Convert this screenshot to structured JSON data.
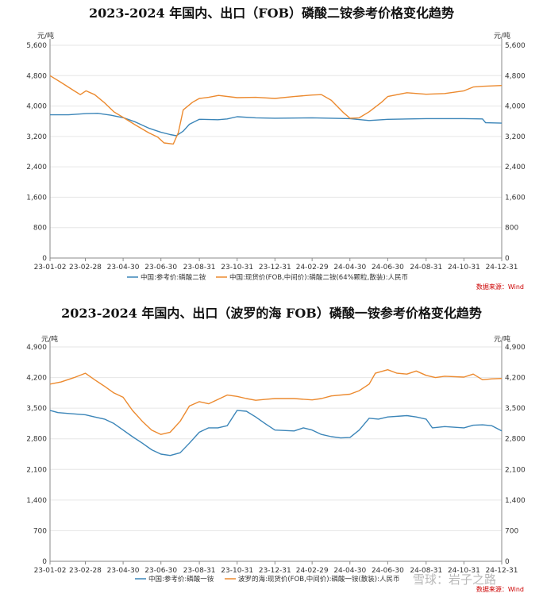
{
  "chart_data": [
    {
      "type": "line",
      "title": "2023-2024 年国内、出口（FOB）磷酸二铵参考价格变化趋势",
      "unit_left": "元/吨",
      "unit_right": "元/吨",
      "ylim": [
        0,
        5600
      ],
      "yticks": [
        "0",
        "800",
        "1,600",
        "2,400",
        "3,200",
        "4,000",
        "4,800",
        "5,600"
      ],
      "xlim": [
        "2023-01-02",
        "2024-12-31"
      ],
      "xticks": [
        "23-01-02",
        "23-02-28",
        "23-04-30",
        "23-06-30",
        "23-08-31",
        "23-10-31",
        "23-12-31",
        "24-02-29",
        "24-04-30",
        "24-06-30",
        "24-08-31",
        "24-10-31",
        "24-12-31"
      ],
      "grid": true,
      "legend_position": "bottom",
      "source": "数据来源：Wind",
      "series": [
        {
          "name": "中国:参考价:磷酸二铵",
          "color": "#3b85b8",
          "points": [
            [
              "2023-01-02",
              3770
            ],
            [
              "2023-02-01",
              3770
            ],
            [
              "2023-03-01",
              3800
            ],
            [
              "2023-03-20",
              3810
            ],
            [
              "2023-04-10",
              3760
            ],
            [
              "2023-05-01",
              3690
            ],
            [
              "2023-05-20",
              3580
            ],
            [
              "2023-06-10",
              3420
            ],
            [
              "2023-06-30",
              3310
            ],
            [
              "2023-07-15",
              3250
            ],
            [
              "2023-07-25",
              3220
            ],
            [
              "2023-08-05",
              3340
            ],
            [
              "2023-08-15",
              3520
            ],
            [
              "2023-08-31",
              3650
            ],
            [
              "2023-09-30",
              3640
            ],
            [
              "2023-10-15",
              3660
            ],
            [
              "2023-10-31",
              3720
            ],
            [
              "2023-11-30",
              3690
            ],
            [
              "2023-12-31",
              3680
            ],
            [
              "2024-02-29",
              3690
            ],
            [
              "2024-04-30",
              3670
            ],
            [
              "2024-05-31",
              3620
            ],
            [
              "2024-06-30",
              3650
            ],
            [
              "2024-08-31",
              3670
            ],
            [
              "2024-10-31",
              3670
            ],
            [
              "2024-11-30",
              3660
            ],
            [
              "2024-12-05",
              3560
            ],
            [
              "2024-12-31",
              3550
            ]
          ]
        },
        {
          "name": "中国:现货价(FOB,中间价):磷酸二铵(64%颗粒,散装):人民币",
          "color": "#ec8a2f",
          "points": [
            [
              "2023-01-02",
              4800
            ],
            [
              "2023-01-20",
              4620
            ],
            [
              "2023-02-10",
              4400
            ],
            [
              "2023-02-20",
              4300
            ],
            [
              "2023-03-01",
              4400
            ],
            [
              "2023-03-15",
              4300
            ],
            [
              "2023-03-30",
              4100
            ],
            [
              "2023-04-15",
              3850
            ],
            [
              "2023-04-30",
              3700
            ],
            [
              "2023-05-20",
              3500
            ],
            [
              "2023-06-10",
              3300
            ],
            [
              "2023-06-25",
              3180
            ],
            [
              "2023-07-05",
              3030
            ],
            [
              "2023-07-20",
              3000
            ],
            [
              "2023-07-28",
              3300
            ],
            [
              "2023-08-05",
              3900
            ],
            [
              "2023-08-20",
              4100
            ],
            [
              "2023-08-31",
              4200
            ],
            [
              "2023-09-15",
              4230
            ],
            [
              "2023-10-01",
              4280
            ],
            [
              "2023-10-31",
              4220
            ],
            [
              "2023-11-30",
              4230
            ],
            [
              "2023-12-31",
              4200
            ],
            [
              "2024-01-31",
              4250
            ],
            [
              "2024-02-29",
              4290
            ],
            [
              "2024-03-15",
              4300
            ],
            [
              "2024-03-31",
              4150
            ],
            [
              "2024-04-20",
              3820
            ],
            [
              "2024-04-30",
              3680
            ],
            [
              "2024-05-15",
              3690
            ],
            [
              "2024-05-31",
              3850
            ],
            [
              "2024-06-20",
              4100
            ],
            [
              "2024-06-30",
              4250
            ],
            [
              "2024-07-31",
              4350
            ],
            [
              "2024-08-31",
              4310
            ],
            [
              "2024-09-30",
              4330
            ],
            [
              "2024-10-31",
              4400
            ],
            [
              "2024-11-15",
              4500
            ],
            [
              "2024-11-30",
              4520
            ],
            [
              "2024-12-31",
              4540
            ]
          ]
        }
      ]
    },
    {
      "type": "line",
      "title": "2023-2024 年国内、出口（波罗的海 FOB）磷酸一铵参考价格变化趋势",
      "unit_left": "元/吨",
      "unit_right": "元/吨",
      "ylim": [
        0,
        4900
      ],
      "yticks": [
        "0",
        "700",
        "1,400",
        "2,100",
        "2,800",
        "3,500",
        "4,200",
        "4,900"
      ],
      "xlim": [
        "2023-01-02",
        "2024-12-31"
      ],
      "xticks": [
        "23-01-02",
        "23-02-28",
        "23-04-30",
        "23-06-30",
        "23-08-31",
        "23-10-31",
        "23-12-31",
        "24-02-29",
        "24-04-30",
        "24-06-30",
        "24-08-31",
        "24-10-31",
        "24-12-31"
      ],
      "grid": true,
      "legend_position": "bottom",
      "source": "数据来源：Wind",
      "series": [
        {
          "name": "中国:参考价:磷酸一铵",
          "color": "#3b85b8",
          "points": [
            [
              "2023-01-02",
              3450
            ],
            [
              "2023-01-15",
              3400
            ],
            [
              "2023-02-01",
              3380
            ],
            [
              "2023-02-28",
              3350
            ],
            [
              "2023-03-15",
              3300
            ],
            [
              "2023-03-31",
              3250
            ],
            [
              "2023-04-15",
              3150
            ],
            [
              "2023-04-30",
              3000
            ],
            [
              "2023-05-15",
              2850
            ],
            [
              "2023-05-31",
              2700
            ],
            [
              "2023-06-15",
              2550
            ],
            [
              "2023-06-30",
              2450
            ],
            [
              "2023-07-15",
              2420
            ],
            [
              "2023-07-31",
              2480
            ],
            [
              "2023-08-15",
              2700
            ],
            [
              "2023-08-31",
              2950
            ],
            [
              "2023-09-15",
              3050
            ],
            [
              "2023-09-30",
              3050
            ],
            [
              "2023-10-15",
              3100
            ],
            [
              "2023-10-31",
              3450
            ],
            [
              "2023-11-15",
              3430
            ],
            [
              "2023-11-30",
              3300
            ],
            [
              "2023-12-15",
              3150
            ],
            [
              "2023-12-31",
              3000
            ],
            [
              "2024-01-31",
              2980
            ],
            [
              "2024-02-15",
              3050
            ],
            [
              "2024-02-29",
              3000
            ],
            [
              "2024-03-15",
              2900
            ],
            [
              "2024-03-31",
              2850
            ],
            [
              "2024-04-15",
              2820
            ],
            [
              "2024-04-30",
              2830
            ],
            [
              "2024-05-15",
              3000
            ],
            [
              "2024-05-31",
              3270
            ],
            [
              "2024-06-15",
              3250
            ],
            [
              "2024-06-30",
              3300
            ],
            [
              "2024-07-31",
              3330
            ],
            [
              "2024-08-15",
              3300
            ],
            [
              "2024-08-31",
              3250
            ],
            [
              "2024-09-10",
              3050
            ],
            [
              "2024-09-30",
              3080
            ],
            [
              "2024-10-31",
              3050
            ],
            [
              "2024-11-15",
              3110
            ],
            [
              "2024-11-30",
              3120
            ],
            [
              "2024-12-15",
              3100
            ],
            [
              "2024-12-31",
              2980
            ]
          ]
        },
        {
          "name": "波罗的海:现货价(FOB,中间价):磷酸一铵(散装):人民币",
          "color": "#ec8a2f",
          "points": [
            [
              "2023-01-02",
              4050
            ],
            [
              "2023-01-20",
              4100
            ],
            [
              "2023-02-10",
              4200
            ],
            [
              "2023-02-28",
              4300
            ],
            [
              "2023-03-15",
              4150
            ],
            [
              "2023-03-31",
              4000
            ],
            [
              "2023-04-15",
              3850
            ],
            [
              "2023-04-30",
              3750
            ],
            [
              "2023-05-15",
              3450
            ],
            [
              "2023-05-31",
              3200
            ],
            [
              "2023-06-15",
              3000
            ],
            [
              "2023-06-30",
              2900
            ],
            [
              "2023-07-15",
              2950
            ],
            [
              "2023-07-31",
              3200
            ],
            [
              "2023-08-15",
              3550
            ],
            [
              "2023-08-31",
              3650
            ],
            [
              "2023-09-15",
              3600
            ],
            [
              "2023-09-30",
              3700
            ],
            [
              "2023-10-15",
              3800
            ],
            [
              "2023-10-31",
              3770
            ],
            [
              "2023-11-15",
              3720
            ],
            [
              "2023-11-30",
              3680
            ],
            [
              "2023-12-15",
              3700
            ],
            [
              "2023-12-31",
              3720
            ],
            [
              "2024-01-31",
              3720
            ],
            [
              "2024-02-29",
              3690
            ],
            [
              "2024-03-15",
              3720
            ],
            [
              "2024-03-31",
              3780
            ],
            [
              "2024-04-30",
              3820
            ],
            [
              "2024-05-15",
              3900
            ],
            [
              "2024-05-31",
              4050
            ],
            [
              "2024-06-10",
              4300
            ],
            [
              "2024-06-30",
              4380
            ],
            [
              "2024-07-15",
              4300
            ],
            [
              "2024-07-31",
              4280
            ],
            [
              "2024-08-15",
              4350
            ],
            [
              "2024-08-31",
              4250
            ],
            [
              "2024-09-15",
              4200
            ],
            [
              "2024-09-30",
              4230
            ],
            [
              "2024-10-31",
              4210
            ],
            [
              "2024-11-15",
              4280
            ],
            [
              "2024-11-30",
              4150
            ],
            [
              "2024-12-15",
              4170
            ],
            [
              "2024-12-31",
              4180
            ]
          ]
        }
      ]
    }
  ],
  "watermark": "雪球：岩子之路"
}
